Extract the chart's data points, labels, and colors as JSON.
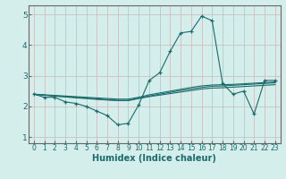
{
  "title": "",
  "xlabel": "Humidex (Indice chaleur)",
  "ylabel": "",
  "xlim": [
    -0.5,
    23.5
  ],
  "ylim": [
    0.8,
    5.3
  ],
  "yticks": [
    1,
    2,
    3,
    4,
    5
  ],
  "xticks": [
    0,
    1,
    2,
    3,
    4,
    5,
    6,
    7,
    8,
    9,
    10,
    11,
    12,
    13,
    14,
    15,
    16,
    17,
    18,
    19,
    20,
    21,
    22,
    23
  ],
  "line_color": "#1a6b6b",
  "background_color": "#d4eeec",
  "grid_color": "#c8b8b8",
  "spine_color": "#666666",
  "series": [
    [
      2.4,
      2.3,
      2.3,
      2.15,
      2.1,
      2.0,
      1.85,
      1.7,
      1.4,
      1.45,
      2.05,
      2.85,
      3.1,
      3.8,
      4.4,
      4.45,
      4.95,
      4.8,
      2.75,
      2.4,
      2.5,
      1.75,
      2.85,
      2.85
    ],
    [
      2.4,
      2.38,
      2.36,
      2.34,
      2.32,
      2.3,
      2.28,
      2.26,
      2.24,
      2.24,
      2.3,
      2.38,
      2.44,
      2.5,
      2.56,
      2.62,
      2.67,
      2.7,
      2.71,
      2.72,
      2.74,
      2.76,
      2.78,
      2.8
    ],
    [
      2.4,
      2.37,
      2.34,
      2.31,
      2.28,
      2.26,
      2.23,
      2.21,
      2.19,
      2.19,
      2.26,
      2.32,
      2.37,
      2.42,
      2.47,
      2.52,
      2.57,
      2.6,
      2.61,
      2.63,
      2.65,
      2.67,
      2.69,
      2.71
    ],
    [
      2.4,
      2.37,
      2.34,
      2.32,
      2.3,
      2.27,
      2.25,
      2.22,
      2.2,
      2.2,
      2.27,
      2.34,
      2.4,
      2.46,
      2.52,
      2.57,
      2.62,
      2.66,
      2.67,
      2.69,
      2.71,
      2.73,
      2.75,
      2.77
    ]
  ]
}
